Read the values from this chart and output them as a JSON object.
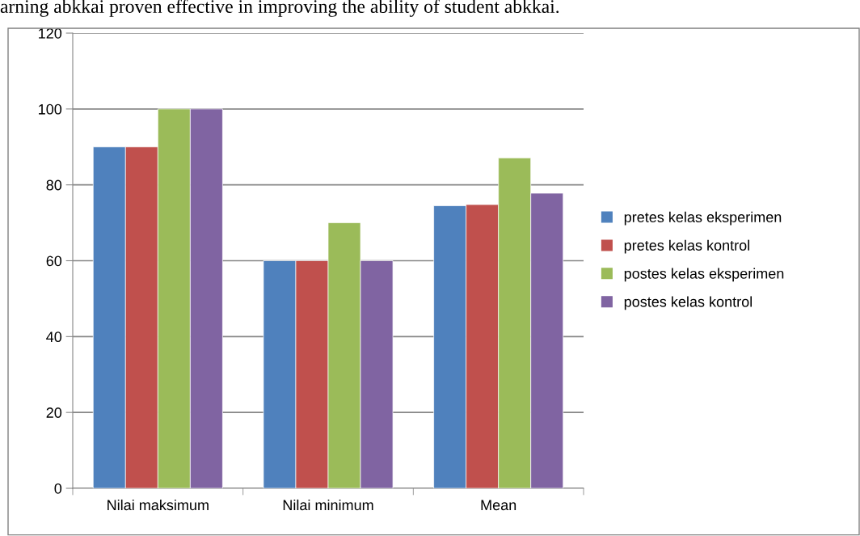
{
  "chart_data": {
    "type": "bar",
    "categories": [
      "Nilai maksimum",
      "Nilai minimum",
      "Mean"
    ],
    "series": [
      {
        "name": "pretes kelas eksperimen",
        "color": "#4f81bd",
        "values": [
          90,
          60,
          74.5
        ]
      },
      {
        "name": "pretes kelas kontrol",
        "color": "#c0504d",
        "values": [
          90,
          60,
          74.8
        ]
      },
      {
        "name": "postes kelas eksperimen",
        "color": "#9bbb59",
        "values": [
          100,
          70,
          87.1
        ]
      },
      {
        "name": "postes kelas kontrol",
        "color": "#8064a2",
        "values": [
          100,
          60,
          77.8
        ]
      }
    ],
    "ylim": [
      0,
      120
    ],
    "yticks": [
      0,
      20,
      40,
      60,
      80,
      100,
      120
    ],
    "grid": "y",
    "legend": "right",
    "annotations": [
      "arning abkkai proven effective in improving the ability of student abkkai."
    ]
  }
}
